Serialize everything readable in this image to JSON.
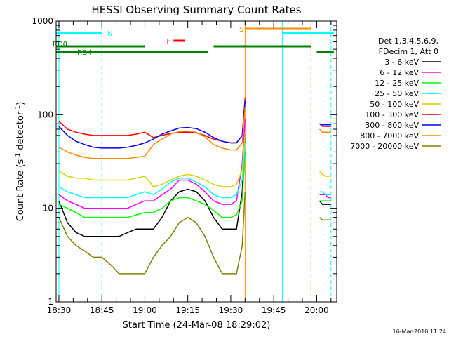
{
  "chart_data": {
    "type": "line",
    "title": "HESSI Observing Summary Count Rates",
    "xlabel": "Start Time (24-Mar-08 18:29:02)",
    "ylabel_pre": "Count Rate (s",
    "ylabel_sup1": "-1",
    "ylabel_mid": " detector",
    "ylabel_sup2": "-1",
    "ylabel_post": ")",
    "yscale": "log",
    "ylim": [
      1,
      1000
    ],
    "xlim": [
      "18:29:02",
      "20:07:00"
    ],
    "x_ticks": [
      "18:30",
      "18:45",
      "19:00",
      "19:15",
      "19:30",
      "19:45",
      "20:00"
    ],
    "y_ticks": [
      "1",
      "10",
      "100",
      "1000"
    ],
    "legend": {
      "placement": "right",
      "header": [
        "Det 1,3,4,5,6,9,",
        "FDecim 1, Att 0"
      ],
      "entries": [
        {
          "name": "3 - 6 keV",
          "color": "#000000"
        },
        {
          "name": "6 - 12 keV",
          "color": "#ff00ff"
        },
        {
          "name": "12 - 25 keV",
          "color": "#00ff00"
        },
        {
          "name": "25 - 50 keV",
          "color": "#00ffff"
        },
        {
          "name": "50 - 100 keV",
          "color": "#d4d400"
        },
        {
          "name": "100 - 300 keV",
          "color": "#ff0000"
        },
        {
          "name": "300 - 800 keV",
          "color": "#0000ff"
        },
        {
          "name": "800 - 7000 keV",
          "color": "#ff8c00"
        },
        {
          "name": "7000 - 20000 keV",
          "color": "#808000"
        }
      ]
    },
    "flags": [
      {
        "label": "N",
        "color": "#00ffff",
        "segments": [
          [
            "18:29",
            "18:45"
          ],
          [
            "19:48",
            "20:06"
          ]
        ]
      },
      {
        "label": "S",
        "color": "#ff8c00",
        "segments": [
          [
            "19:35",
            "19:58"
          ]
        ]
      },
      {
        "label": "F",
        "color": "#ff0000",
        "segments": [
          [
            "19:10",
            "19:14"
          ]
        ]
      },
      {
        "label": "RD0",
        "color": "#008000",
        "segments": [
          [
            "18:29",
            "19:00"
          ],
          [
            "19:24",
            "19:58"
          ]
        ]
      },
      {
        "label": "RD4",
        "color": "#008000",
        "segments": [
          [
            "18:29",
            "19:00"
          ],
          [
            "19:00",
            "19:22"
          ],
          [
            "20:00",
            "20:06"
          ]
        ]
      }
    ],
    "series_times": [
      "18:30",
      "18:33",
      "18:36",
      "18:39",
      "18:42",
      "18:45",
      "18:48",
      "18:51",
      "18:54",
      "18:57",
      "19:00",
      "19:03",
      "19:06",
      "19:09",
      "19:12",
      "19:15",
      "19:18",
      "19:21",
      "19:24",
      "19:27",
      "19:30",
      "19:32",
      "19:34",
      "19:35",
      "20:01",
      "20:02",
      "20:03",
      "20:04",
      "20:05"
    ],
    "series": [
      {
        "name": "3 - 6 keV",
        "values": [
          12,
          7,
          5.5,
          5,
          5,
          5,
          5,
          5,
          5.5,
          6,
          6,
          6,
          8,
          12,
          15,
          16,
          15,
          12,
          8,
          6,
          6,
          6,
          15,
          60,
          12,
          11,
          11,
          11,
          11
        ]
      },
      {
        "name": "6 - 12 keV",
        "values": [
          14,
          12,
          11,
          10,
          10,
          10,
          10,
          10,
          10,
          11,
          12,
          12,
          14,
          16,
          20,
          20,
          18,
          15,
          12,
          11,
          11,
          12,
          30,
          90,
          14,
          14,
          14,
          13,
          13
        ]
      },
      {
        "name": "12 - 25 keV",
        "values": [
          11,
          10,
          9,
          8,
          8,
          8,
          8,
          8,
          8,
          8.5,
          9,
          9,
          10,
          12,
          13,
          13,
          12,
          11,
          9.5,
          8,
          8,
          8.5,
          12,
          40,
          12,
          12,
          12,
          12,
          12
        ]
      },
      {
        "name": "25 - 50 keV",
        "values": [
          17,
          15,
          14,
          13,
          13,
          13,
          13,
          13,
          13,
          14,
          15,
          14,
          16,
          19,
          21,
          21,
          19,
          17,
          14,
          13,
          13,
          14,
          20,
          50,
          15,
          15,
          14,
          14,
          14
        ]
      },
      {
        "name": "50 - 100 keV",
        "values": [
          25,
          22,
          21,
          21,
          20,
          20,
          20,
          20,
          20,
          21,
          22,
          17,
          18,
          20,
          22,
          23,
          22,
          20,
          18,
          17,
          17,
          18,
          26,
          60,
          25,
          23,
          22,
          22,
          22
        ]
      },
      {
        "name": "100 - 300 keV",
        "values": [
          85,
          70,
          65,
          62,
          60,
          60,
          60,
          60,
          60,
          62,
          65,
          57,
          60,
          63,
          65,
          65,
          64,
          60,
          55,
          52,
          50,
          50,
          60,
          150,
          80,
          75,
          75,
          75,
          75
        ]
      },
      {
        "name": "300 - 800 keV",
        "values": [
          75,
          60,
          52,
          48,
          45,
          44,
          44,
          44,
          45,
          47,
          50,
          55,
          62,
          67,
          72,
          73,
          71,
          65,
          57,
          52,
          50,
          50,
          60,
          140,
          80,
          78,
          78,
          78,
          78
        ]
      },
      {
        "name": "800 - 7000 keV",
        "values": [
          45,
          40,
          37,
          35,
          34,
          34,
          34,
          34,
          34,
          35,
          36,
          48,
          55,
          62,
          66,
          67,
          65,
          58,
          48,
          44,
          42,
          42,
          50,
          120,
          70,
          65,
          65,
          65,
          65
        ]
      },
      {
        "name": "7000 - 20000 keV",
        "values": [
          8,
          5,
          4,
          3.5,
          3,
          3,
          2.5,
          2,
          2,
          2,
          2,
          3,
          4,
          5,
          7,
          8,
          7,
          5,
          3,
          2,
          2,
          2,
          4,
          15,
          8,
          7.5,
          7.5,
          7.5,
          7.5
        ]
      }
    ],
    "vertical_markers": [
      {
        "time": "18:30",
        "color": "#00ffff",
        "style": "solid"
      },
      {
        "time": "18:45",
        "color": "#00ffff",
        "style": "dashed"
      },
      {
        "time": "19:35",
        "color": "#ff8c00",
        "style": "solid"
      },
      {
        "time": "19:48",
        "color": "#00ffff",
        "style": "solid"
      },
      {
        "time": "19:58",
        "color": "#ff8c00",
        "style": "dashed"
      },
      {
        "time": "20:05",
        "color": "#00ffff",
        "style": "dashed"
      }
    ],
    "footer": "16-Mar-2010 11:24"
  }
}
